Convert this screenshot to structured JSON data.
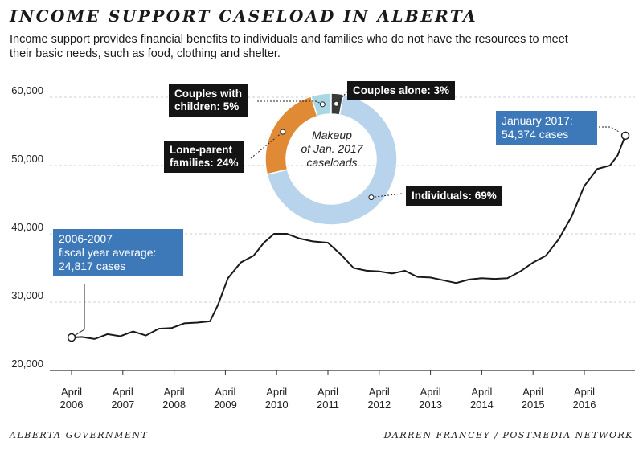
{
  "title": "INCOME SUPPORT CASELOAD IN ALBERTA",
  "subtitle": "Income support provides financial benefits to individuals and families who do not have the resources to meet their basic needs, such as food, clothing and shelter.",
  "source_left": "ALBERTA GOVERNMENT",
  "source_right": "DARREN FRANCEY / POSTMEDIA NETWORK",
  "colors": {
    "line": "#1a1a1a",
    "grid": "#cfcfcf",
    "callout_blue": "#3d78b8",
    "callout_dark": "#141414",
    "individuals": "#b8d4ec",
    "lone_parent": "#e08a36",
    "couples_children": "#a9d7e6",
    "couples_alone": "#3a3a3a"
  },
  "annotations": {
    "start": {
      "line1": "2006-2007",
      "line2": "fiscal year average:",
      "line3": "24,817 cases"
    },
    "end": {
      "line1": "January 2017:",
      "line2": "54,374 cases"
    }
  },
  "chart_data": [
    {
      "type": "line",
      "title": "",
      "xlabel": "",
      "ylabel": "",
      "ylim": [
        20000,
        60000
      ],
      "y_ticks": [
        20000,
        30000,
        40000,
        50000,
        60000
      ],
      "y_tick_labels": [
        "20,000",
        "30,000",
        "40,000",
        "50,000",
        "60,000"
      ],
      "x_ticks": [
        2006.25,
        2007.25,
        2008.25,
        2009.25,
        2010.25,
        2011.25,
        2012.25,
        2013.25,
        2014.25,
        2015.25,
        2016.25
      ],
      "x_tick_labels": [
        [
          "April",
          "2006"
        ],
        [
          "April",
          "2007"
        ],
        [
          "April",
          "2008"
        ],
        [
          "April",
          "2009"
        ],
        [
          "April",
          "2010"
        ],
        [
          "April",
          "2011"
        ],
        [
          "April",
          "2012"
        ],
        [
          "April",
          "2013"
        ],
        [
          "April",
          "2014"
        ],
        [
          "April",
          "2015"
        ],
        [
          "April",
          "2016"
        ]
      ],
      "grid": true,
      "series": [
        {
          "x": [
            2006.25,
            2006.45,
            2006.7,
            2006.95,
            2007.2,
            2007.45,
            2007.7,
            2007.95,
            2008.2,
            2008.45,
            2008.7,
            2008.95,
            2009.1,
            2009.3,
            2009.55,
            2009.8,
            2010.0,
            2010.2,
            2010.45,
            2010.7,
            2010.95,
            2011.25,
            2011.5,
            2011.75,
            2012.0,
            2012.25,
            2012.5,
            2012.75,
            2013.0,
            2013.25,
            2013.5,
            2013.75,
            2014.0,
            2014.25,
            2014.5,
            2014.75,
            2015.0,
            2015.25,
            2015.5,
            2015.75,
            2016.0,
            2016.25,
            2016.5,
            2016.75,
            2016.9,
            2017.05
          ],
          "y": [
            24817,
            24900,
            24600,
            25300,
            25000,
            25700,
            25100,
            26100,
            26200,
            26900,
            27000,
            27200,
            29500,
            33500,
            35800,
            36800,
            38700,
            40000,
            40000,
            39300,
            38900,
            38700,
            37000,
            35000,
            34600,
            34500,
            34200,
            34600,
            33700,
            33600,
            33200,
            32800,
            33300,
            33500,
            33400,
            33500,
            34500,
            35800,
            36800,
            39200,
            42500,
            47000,
            49500,
            50000,
            51500,
            54374
          ]
        }
      ]
    },
    {
      "type": "pie",
      "center_label": [
        "Makeup",
        "of Jan. 2017",
        "caseloads"
      ],
      "slices": [
        {
          "label": "Individuals",
          "value": 69,
          "text": "Individuals: 69%"
        },
        {
          "label": "Lone-parent families",
          "value": 24,
          "text1": "Lone-parent",
          "text2": "families: 24%"
        },
        {
          "label": "Couples with children",
          "value": 5,
          "text1": "Couples with",
          "text2": "children: 5%"
        },
        {
          "label": "Couples alone",
          "value": 3,
          "text": "Couples alone: 3%"
        }
      ]
    }
  ]
}
